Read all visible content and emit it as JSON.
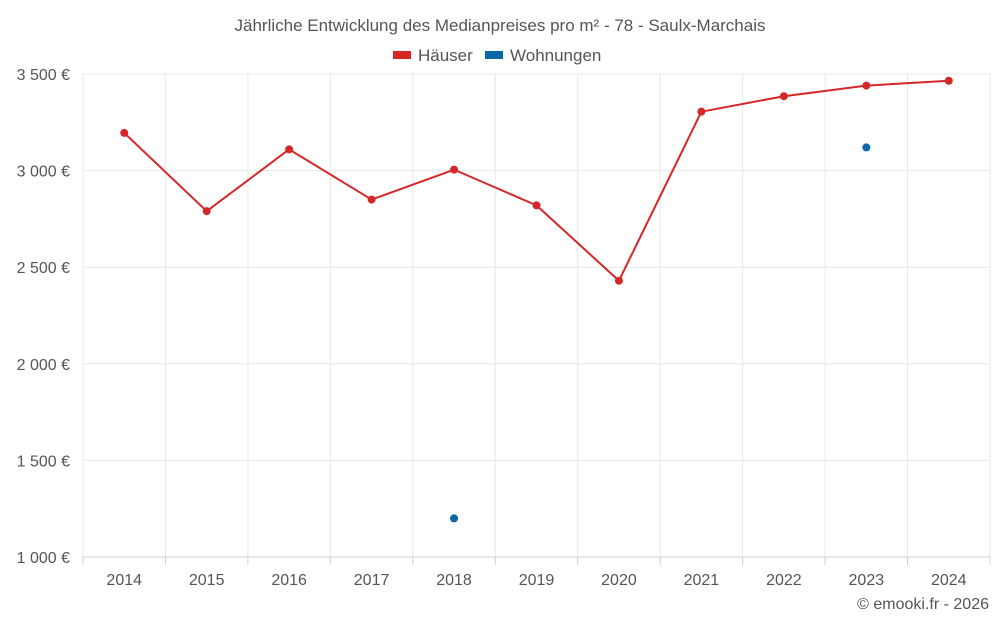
{
  "chart_data": {
    "type": "line",
    "title": "Jährliche Entwicklung des Medianpreises pro m² - 78 - Saulx-Marchais",
    "categories": [
      "2014",
      "2015",
      "2016",
      "2017",
      "2018",
      "2019",
      "2020",
      "2021",
      "2022",
      "2023",
      "2024"
    ],
    "ylim": [
      1000,
      3500
    ],
    "yticks": [
      1000,
      1500,
      2000,
      2500,
      3000,
      3500
    ],
    "ytick_labels": [
      "1 000 €",
      "1 500 €",
      "2 000 €",
      "2 500 €",
      "3 000 €",
      "3 500 €"
    ],
    "grid": true,
    "legend_position": "top-center",
    "series": [
      {
        "name": "Häuser",
        "color": "#d62728",
        "values": [
          3195,
          2790,
          3110,
          2850,
          3005,
          2820,
          2430,
          3305,
          3385,
          3440,
          3465
        ]
      },
      {
        "name": "Wohnungen",
        "color": "#0a68a8",
        "values": [
          null,
          null,
          null,
          null,
          1200,
          null,
          null,
          null,
          null,
          3120,
          null
        ]
      }
    ],
    "credit": "© emooki.fr - 2026"
  }
}
